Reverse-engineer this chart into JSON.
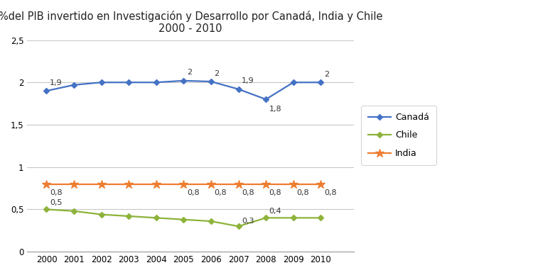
{
  "title_line1": "%del PIB invertido en Investigación y Desarrollo por Canadá, India y Chile",
  "title_line2": "2000 - 2010",
  "years": [
    2000,
    2001,
    2002,
    2003,
    2004,
    2005,
    2006,
    2007,
    2008,
    2009,
    2010
  ],
  "canada": [
    1.9,
    1.97,
    2.0,
    2.0,
    2.0,
    2.02,
    2.01,
    1.92,
    1.8,
    2.0,
    2.0
  ],
  "india": [
    0.8,
    0.8,
    0.8,
    0.8,
    0.8,
    0.8,
    0.8,
    0.8,
    0.8,
    0.8,
    0.8
  ],
  "chile": [
    0.5,
    0.48,
    0.44,
    0.42,
    0.4,
    0.38,
    0.36,
    0.3,
    0.4,
    0.4,
    0.4
  ],
  "canada_color": "#4472C4",
  "india_color": "#ED7D31",
  "chile_color": "#8DB33A",
  "ylim": [
    0,
    2.5
  ],
  "yticks": [
    0,
    0.5,
    1.0,
    1.5,
    2.0,
    2.5
  ],
  "ytick_labels": [
    "0",
    "0,5",
    "1",
    "1,5",
    "2",
    "2,5"
  ],
  "background_color": "#FFFFFF",
  "plot_bg_color": "#FFFFFF",
  "grid_color": "#C8C8C8"
}
